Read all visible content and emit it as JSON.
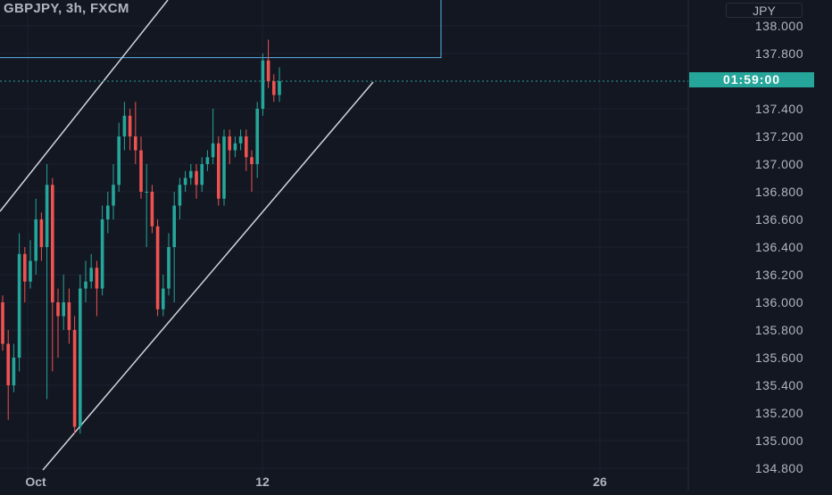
{
  "header": {
    "symbol_title": "GBPJPY, 3h, FXCM",
    "currency_button": "JPY"
  },
  "countdown_label": "01:59:00",
  "colors": {
    "background": "#131722",
    "up_candle": "#26a69a",
    "down_candle": "#ef5350",
    "trendline": "#d1d4dc",
    "rectangle": "#5db2ea",
    "axis_text": "#b2b5be"
  },
  "chart_data": {
    "type": "candlestick",
    "title": "GBPJPY, 3h, FXCM",
    "ylim": [
      134.75,
      138.1
    ],
    "y_ticks": [
      "138.000",
      "137.800",
      "137.400",
      "137.200",
      "137.000",
      "136.800",
      "136.600",
      "136.400",
      "136.200",
      "136.000",
      "135.800",
      "135.600",
      "135.400",
      "135.200",
      "135.000",
      "134.800"
    ],
    "x_ticks": [
      "Oct",
      "12",
      "26"
    ],
    "current_price_marker": {
      "price": 137.6,
      "label": "01:59:00"
    },
    "grid": true,
    "shapes": {
      "rectangle_bottom_price": 137.77,
      "channel_lines": "two parallel ascending trendlines"
    },
    "candles": [
      [
        136.0,
        135.7,
        136.05,
        135.65
      ],
      [
        135.7,
        135.4,
        135.8,
        135.15
      ],
      [
        135.4,
        135.6,
        135.7,
        135.35
      ],
      [
        135.6,
        136.35,
        136.5,
        135.5
      ],
      [
        136.35,
        136.15,
        136.4,
        136.0
      ],
      [
        136.15,
        136.3,
        136.45,
        136.1
      ],
      [
        136.3,
        136.6,
        136.75,
        136.2
      ],
      [
        136.6,
        136.4,
        136.65,
        136.3
      ],
      [
        136.4,
        136.85,
        137.0,
        135.3
      ],
      [
        136.85,
        136.0,
        136.9,
        135.5
      ],
      [
        136.0,
        135.9,
        136.1,
        135.6
      ],
      [
        135.9,
        136.0,
        136.2,
        135.8
      ],
      [
        136.0,
        135.8,
        136.1,
        135.7
      ],
      [
        135.8,
        135.1,
        135.9,
        135.05
      ],
      [
        135.1,
        136.1,
        136.2,
        135.05
      ],
      [
        136.1,
        136.15,
        136.3,
        136.0
      ],
      [
        136.15,
        136.25,
        136.35,
        136.1
      ],
      [
        136.25,
        136.1,
        136.3,
        135.9
      ],
      [
        136.1,
        136.6,
        136.7,
        136.05
      ],
      [
        136.6,
        136.7,
        136.8,
        136.5
      ],
      [
        136.7,
        136.85,
        137.0,
        136.6
      ],
      [
        136.85,
        137.2,
        137.3,
        136.8
      ],
      [
        137.2,
        137.35,
        137.45,
        137.1
      ],
      [
        137.35,
        137.2,
        137.4,
        137.1
      ],
      [
        137.2,
        137.1,
        137.45,
        137.0
      ],
      [
        137.1,
        136.8,
        137.2,
        136.75
      ],
      [
        136.8,
        136.8,
        137.0,
        136.4
      ],
      [
        136.8,
        136.55,
        136.85,
        136.5
      ],
      [
        136.55,
        135.95,
        136.6,
        135.9
      ],
      [
        135.95,
        136.1,
        136.2,
        135.9
      ],
      [
        136.1,
        136.4,
        136.5,
        136.05
      ],
      [
        136.4,
        136.7,
        136.8,
        136.0
      ],
      [
        136.7,
        136.85,
        136.9,
        136.6
      ],
      [
        136.85,
        136.9,
        136.95,
        136.8
      ],
      [
        136.9,
        136.95,
        137.0,
        136.85
      ],
      [
        136.95,
        136.85,
        137.0,
        136.75
      ],
      [
        136.85,
        137.0,
        137.05,
        136.8
      ],
      [
        137.0,
        137.05,
        137.1,
        136.95
      ],
      [
        137.05,
        137.15,
        137.4,
        137.0
      ],
      [
        137.15,
        136.75,
        137.2,
        136.7
      ],
      [
        136.75,
        137.2,
        137.25,
        136.7
      ],
      [
        137.2,
        137.1,
        137.25,
        137.0
      ],
      [
        137.1,
        137.15,
        137.2,
        137.05
      ],
      [
        137.15,
        137.2,
        137.25,
        137.1
      ],
      [
        137.2,
        137.05,
        137.25,
        136.95
      ],
      [
        137.05,
        137.0,
        137.1,
        136.8
      ],
      [
        137.0,
        137.4,
        137.45,
        136.9
      ],
      [
        137.4,
        137.75,
        137.8,
        137.35
      ],
      [
        137.75,
        137.6,
        137.9,
        137.55
      ],
      [
        137.6,
        137.5,
        137.65,
        137.45
      ],
      [
        137.5,
        137.6,
        137.7,
        137.45
      ]
    ]
  }
}
